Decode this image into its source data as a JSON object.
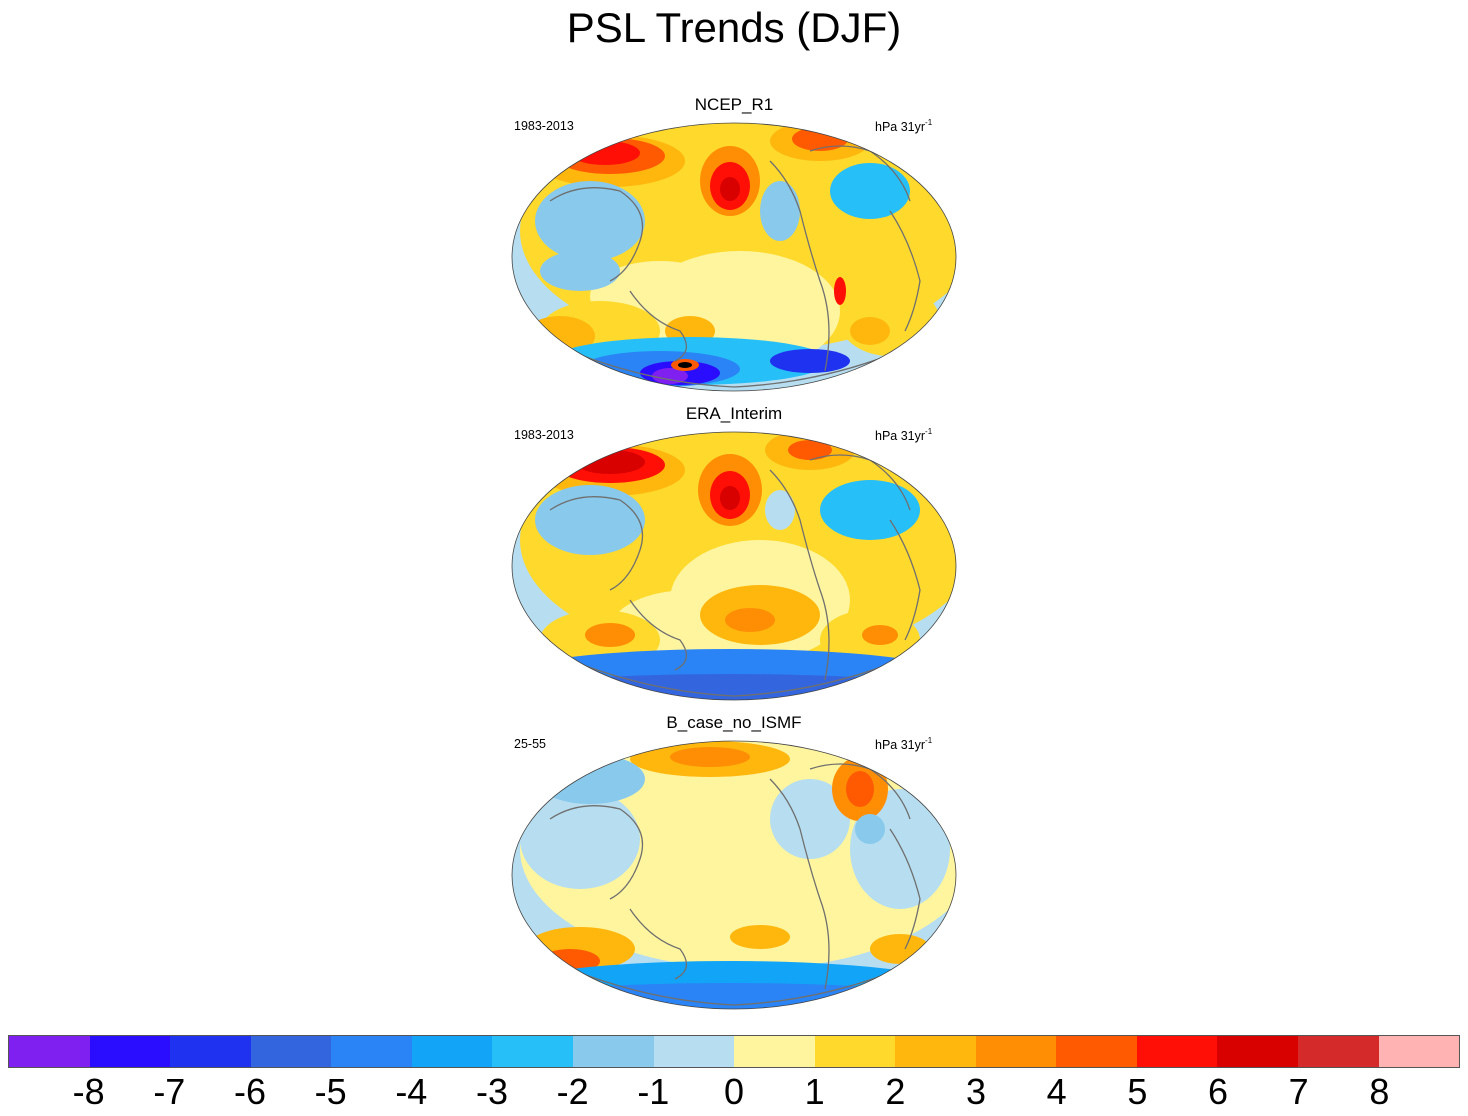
{
  "title": "PSL Trends (DJF)",
  "panels": [
    {
      "title": "NCEP_R1",
      "period": "1983-2013",
      "units_main": "hPa 31yr",
      "units_sup": "-1",
      "pattern": "ncep"
    },
    {
      "title": "ERA_Interim",
      "period": "1983-2013",
      "units_main": "hPa 31yr",
      "units_sup": "-1",
      "pattern": "era"
    },
    {
      "title": "B_case_no_ISMF",
      "period": "25-55",
      "units_main": "hPa 31yr",
      "units_sup": "-1",
      "pattern": "bcase"
    }
  ],
  "colorbar": {
    "colors": [
      "#7f1ff0",
      "#2a0cff",
      "#1e32f0",
      "#3366de",
      "#2a84f5",
      "#12a4f7",
      "#26bff7",
      "#88c9ec",
      "#b6def0",
      "#fff59e",
      "#ffd92c",
      "#ffb70e",
      "#ff8e04",
      "#ff5a02",
      "#ff0f05",
      "#d90000",
      "#d42a2a",
      "#ffb3b3"
    ],
    "labels": [
      "-8",
      "-7",
      "-6",
      "-5",
      "-4",
      "-3",
      "-2",
      "-1",
      "0",
      "1",
      "2",
      "3",
      "4",
      "5",
      "6",
      "7",
      "8"
    ]
  }
}
